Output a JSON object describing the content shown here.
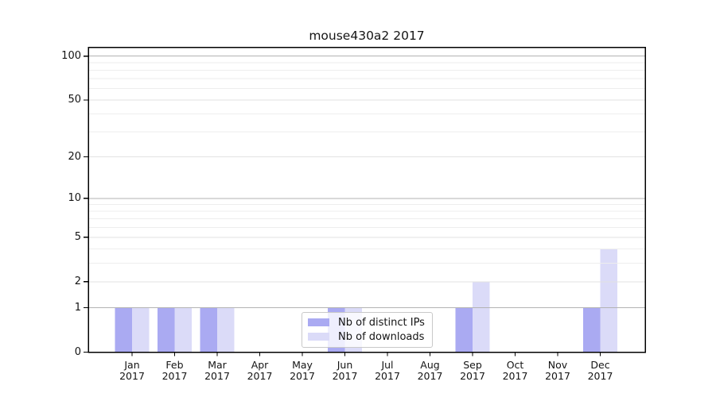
{
  "title": "mouse430a2 2017",
  "chart_data": {
    "type": "bar",
    "title": "mouse430a2 2017",
    "scale": "log10(1+x)",
    "categories": [
      "Jan 2017",
      "Feb 2017",
      "Mar 2017",
      "Apr 2017",
      "May 2017",
      "Jun 2017",
      "Jul 2017",
      "Aug 2017",
      "Sep 2017",
      "Oct 2017",
      "Nov 2017",
      "Dec 2017"
    ],
    "series": [
      {
        "name": "Nb of distinct IPs",
        "color": "#aaaaf2",
        "values": [
          1,
          1,
          1,
          0,
          0,
          1,
          0,
          0,
          1,
          0,
          0,
          1
        ]
      },
      {
        "name": "Nb of downloads",
        "color": "#dbdbf8",
        "values": [
          1,
          1,
          1,
          0,
          0,
          1,
          0,
          0,
          2,
          0,
          0,
          4
        ]
      }
    ],
    "yticks": [
      0,
      1,
      2,
      5,
      10,
      20,
      50,
      100
    ],
    "minor_yticks": [
      3,
      4,
      6,
      7,
      8,
      9,
      30,
      40,
      60,
      70,
      80,
      90
    ],
    "ylim": [
      0,
      115
    ],
    "xlabel": "",
    "ylabel": "",
    "grid": "on",
    "legend_position": "lower center",
    "style": {
      "grid_decade_color": "#b3b3b3",
      "grid_labeled_color": "#e2e2e2",
      "grid_minor_color": "#eeeeee",
      "axis_color": "#000000",
      "text_color": "#141414"
    }
  }
}
